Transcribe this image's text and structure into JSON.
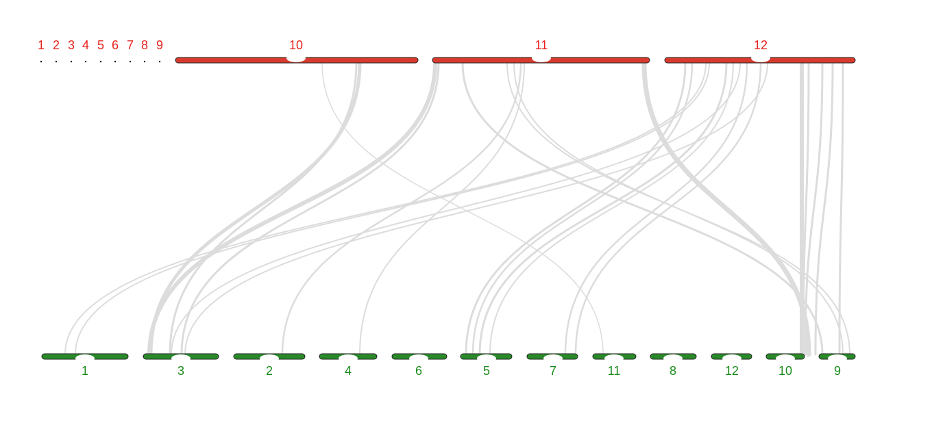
{
  "top": {
    "chromosomes": [
      {
        "label": "1"
      },
      {
        "label": "2"
      },
      {
        "label": "3"
      },
      {
        "label": "4"
      },
      {
        "label": "5"
      },
      {
        "label": "6"
      },
      {
        "label": "7"
      },
      {
        "label": "8"
      },
      {
        "label": "9"
      },
      {
        "label": "10"
      },
      {
        "label": "11"
      },
      {
        "label": "12"
      }
    ]
  },
  "bottom": {
    "chromosomes": [
      {
        "label": "1"
      },
      {
        "label": "3"
      },
      {
        "label": "2"
      },
      {
        "label": "4"
      },
      {
        "label": "6"
      },
      {
        "label": "5"
      },
      {
        "label": "7"
      },
      {
        "label": "11"
      },
      {
        "label": "8"
      },
      {
        "label": "12"
      },
      {
        "label": "10"
      },
      {
        "label": "9"
      }
    ]
  }
}
